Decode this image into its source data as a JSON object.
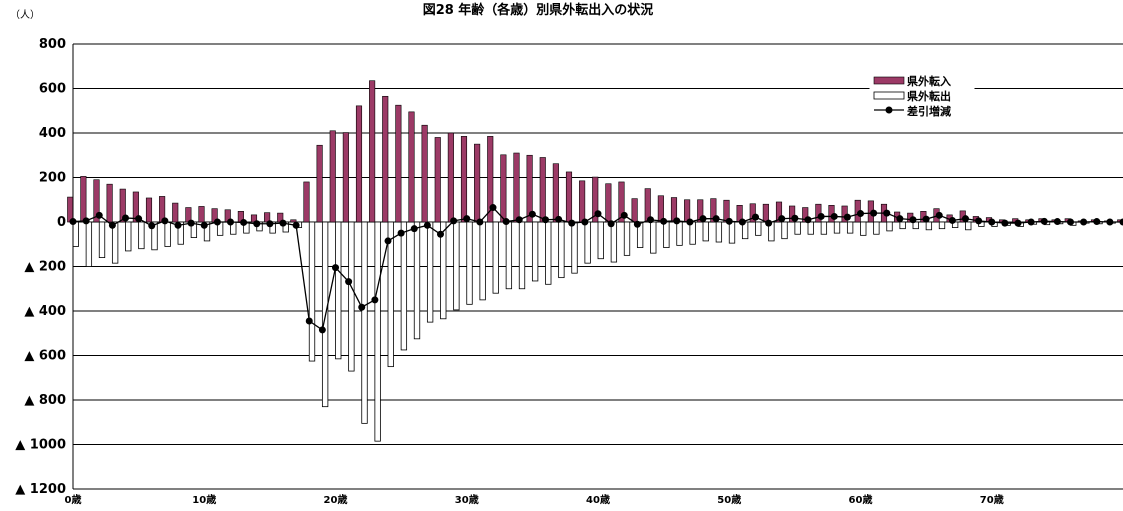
{
  "chart_data": {
    "type": "bar",
    "title": "図28 年齢（各歳）別県外転出入の状況",
    "unit_label": "（人）",
    "ylim": [
      -1200,
      800
    ],
    "y_ticks": [
      {
        "value": 800,
        "label": "800"
      },
      {
        "value": 600,
        "label": "600"
      },
      {
        "value": 400,
        "label": "400"
      },
      {
        "value": 200,
        "label": "200"
      },
      {
        "value": 0,
        "label": "0"
      },
      {
        "value": -200,
        "label": "▲ 200"
      },
      {
        "value": -400,
        "label": "▲ 400"
      },
      {
        "value": -600,
        "label": "▲ 600"
      },
      {
        "value": -800,
        "label": "▲ 800"
      },
      {
        "value": -1000,
        "label": "▲ 1000"
      },
      {
        "value": -1200,
        "label": "▲ 1200"
      }
    ],
    "x_ticks": [
      {
        "age": 0,
        "label": "0歳"
      },
      {
        "age": 10,
        "label": "10歳"
      },
      {
        "age": 20,
        "label": "20歳"
      },
      {
        "age": 30,
        "label": "30歳"
      },
      {
        "age": 40,
        "label": "40歳"
      },
      {
        "age": 50,
        "label": "50歳"
      },
      {
        "age": 60,
        "label": "60歳"
      },
      {
        "age": 70,
        "label": "70歳"
      }
    ],
    "x": [
      0,
      1,
      2,
      3,
      4,
      5,
      6,
      7,
      8,
      9,
      10,
      11,
      12,
      13,
      14,
      15,
      16,
      17,
      18,
      19,
      20,
      21,
      22,
      23,
      24,
      25,
      26,
      27,
      28,
      29,
      30,
      31,
      32,
      33,
      34,
      35,
      36,
      37,
      38,
      39,
      40,
      41,
      42,
      43,
      44,
      45,
      46,
      47,
      48,
      49,
      50,
      51,
      52,
      53,
      54,
      55,
      56,
      57,
      58,
      59,
      60,
      61,
      62,
      63,
      64,
      65,
      66,
      67,
      68,
      69,
      70,
      71,
      72,
      73,
      74,
      75,
      76,
      77,
      78,
      79,
      80
    ],
    "legend": [
      "県外転入",
      "県外転出",
      "差引増減"
    ],
    "series": [
      {
        "name": "県外転入",
        "color": "#9c3a66",
        "values": [
          112,
          205,
          190,
          170,
          148,
          135,
          108,
          115,
          85,
          65,
          70,
          60,
          55,
          48,
          32,
          42,
          40,
          10,
          180,
          345,
          410,
          402,
          522,
          635,
          565,
          525,
          495,
          435,
          380,
          400,
          385,
          350,
          385,
          302,
          310,
          300,
          290,
          262,
          225,
          185,
          202,
          172,
          180,
          105,
          150,
          118,
          110,
          100,
          100,
          105,
          98,
          75,
          82,
          80,
          90,
          72,
          65,
          80,
          75,
          72,
          98,
          95,
          80,
          45,
          40,
          48,
          60,
          32,
          50,
          25,
          20,
          10,
          15,
          10,
          15,
          10,
          15,
          5,
          10,
          5,
          10
        ]
      },
      {
        "name": "県外転出",
        "color": "#ffffff",
        "values": [
          -110,
          -200,
          -160,
          -185,
          -130,
          -120,
          -125,
          -110,
          -100,
          -70,
          -85,
          -60,
          -55,
          -50,
          -40,
          -50,
          -45,
          -25,
          -625,
          -830,
          -615,
          -670,
          -905,
          -985,
          -650,
          -575,
          -525,
          -450,
          -435,
          -395,
          -370,
          -350,
          -320,
          -300,
          -300,
          -265,
          -280,
          -250,
          -230,
          -185,
          -165,
          -180,
          -150,
          -115,
          -140,
          -115,
          -105,
          -100,
          -85,
          -90,
          -95,
          -75,
          -60,
          -85,
          -75,
          -55,
          -55,
          -55,
          -50,
          -50,
          -60,
          -55,
          -40,
          -30,
          -30,
          -35,
          -30,
          -25,
          -35,
          -20,
          -20,
          -15,
          -20,
          -10,
          -12,
          -8,
          -15,
          -5,
          -8,
          -5,
          -10
        ]
      },
      {
        "name": "差引増減",
        "color": "#000000",
        "values": [
          2,
          5,
          30,
          -15,
          18,
          15,
          -17,
          5,
          -15,
          -5,
          -15,
          0,
          0,
          -2,
          -8,
          -8,
          -5,
          -15,
          -445,
          -485,
          -205,
          -268,
          -383,
          -350,
          -85,
          -50,
          -30,
          -15,
          -55,
          5,
          15,
          0,
          65,
          2,
          10,
          35,
          10,
          12,
          -5,
          0,
          37,
          -8,
          30,
          -10,
          10,
          3,
          5,
          0,
          15,
          15,
          3,
          0,
          22,
          -5,
          15,
          17,
          10,
          25,
          25,
          22,
          38,
          40,
          40,
          15,
          10,
          13,
          30,
          7,
          15,
          5,
          0,
          -5,
          -5,
          0,
          3,
          2,
          0,
          0,
          2,
          0,
          0
        ]
      }
    ]
  }
}
